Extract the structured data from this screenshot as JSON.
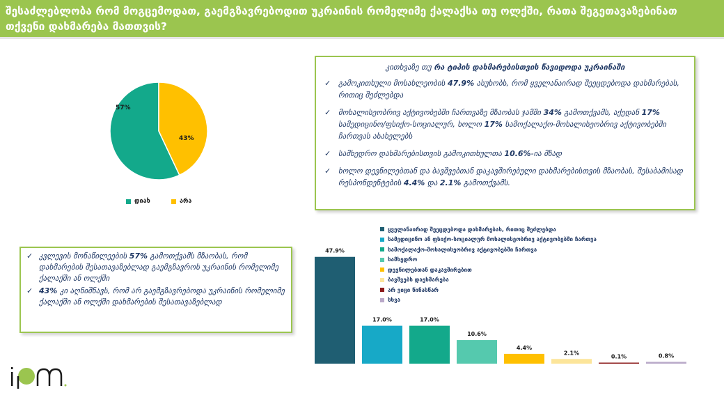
{
  "header": {
    "title": "შესაძლებლობა რომ მოგცემოდათ, გაემგზავრებოდით უკრაინის რომელიმე ქალაქსა თუ ოლქში, რათა შეგეთავაზებინათ თქვენი დახმარება მათთვის?"
  },
  "pie": {
    "slices": [
      {
        "label": "დიახ",
        "value": 57,
        "display": "57%",
        "color": "#13a98b"
      },
      {
        "label": "არა",
        "value": 43,
        "display": "43%",
        "color": "#ffc000"
      }
    ]
  },
  "right_box": {
    "title_pre": "კითხვაზე თუ ",
    "title_bold": "რა ტიპის დახმარებისთვის წავიდოდა უკრაინაში",
    "items": [
      {
        "p1": "გამოკითხული მოსახლეობის ",
        "b1": "47.9%",
        "p2": " ასუხობს, რომ ყველანაირად შეეცდებოდა დახმარებას, რითიც შეძლებდა",
        "b2": "",
        "p3": "",
        "b3": "",
        "p4": ""
      },
      {
        "p1": "მოხალისეობრივ აქტივობებში ჩართვაზე მზაობას ჯამში ",
        "b1": "34%",
        "p2": " გამოთქვამს, აქედან ",
        "b2": "17%",
        "p3": " სამედიცინო/ფსიქო-სოციალურ, ხოლო ",
        "b3": "17%",
        "p4": " სამოქალაქო-მოხალისეობრივ აქტივობებში ჩართვას ასახელებს"
      },
      {
        "p1": "სამხედრო დახმარებისთვის გამოკითხულთა ",
        "b1": "10.6%",
        "p2": "-ია მზად",
        "b2": "",
        "p3": "",
        "b3": "",
        "p4": ""
      },
      {
        "p1": "ხოლო დევნილებთან და ბავშვებთან დაკავშირებული დახმარებისთვის მზაობას, შესაბამისად რესპონდენტების ",
        "b1": "4.4%",
        "p2": " და ",
        "b2": "2.1%",
        "p3": " გამოთქვამს.",
        "b3": "",
        "p4": ""
      }
    ]
  },
  "left_box": {
    "items": [
      {
        "p1": "კვლევის მონაწილეების ",
        "b1": "57%",
        "p2": " გამოთქვამს მზაობას, რომ დახმარების შესათავაზებლად გაემგზავროს უკრაინის რომელიმე ქალაქში ან ოლქში"
      },
      {
        "p1": "",
        "b1": "43%",
        "p2": " კი აღნიშნავს, რომ არ გაემგზავრებოდა უკრაინის რომელიმე ქალაქში ან ოლქში დახმარების შესათავაზებლად"
      }
    ]
  },
  "chart_data": [
    {
      "type": "pie",
      "categories": [
        "დიახ",
        "არა"
      ],
      "values": [
        57,
        43
      ],
      "labels": [
        "57%",
        "43%"
      ],
      "colors": [
        "#13a98b",
        "#ffc000"
      ],
      "legend": "bottom"
    },
    {
      "type": "bar",
      "categories": [
        "ყველანაირად შეეცდებოდა დახმარებას, რითიც შეძლებდა",
        "სამედიცინო ან ფსიქო-სოციალურ მოხალისეობრივ აქტივობებში ჩართვა",
        "სამოქალაქო-მოხალისეობრივ აქტივობებში ჩართვა",
        "სამხედრო",
        "დევნილებთან დაკავშირებით",
        "ბავშვებს დაეხმარება",
        "არ ვიცი წინასწარ",
        "სხვა"
      ],
      "values": [
        47.9,
        17.0,
        17.0,
        10.6,
        4.4,
        2.1,
        0.1,
        0.8
      ],
      "labels": [
        "47.9%",
        "17.0%",
        "17.0%",
        "10.6%",
        "4.4%",
        "2.1%",
        "0.1%",
        "0.8%"
      ],
      "colors": [
        "#1f5e72",
        "#17a9c7",
        "#13a98b",
        "#55c9ae",
        "#ffc000",
        "#fce59a",
        "#8b1a1a",
        "#b9a9c9"
      ],
      "legend": "top-right",
      "ylim": [
        0,
        50
      ]
    }
  ]
}
